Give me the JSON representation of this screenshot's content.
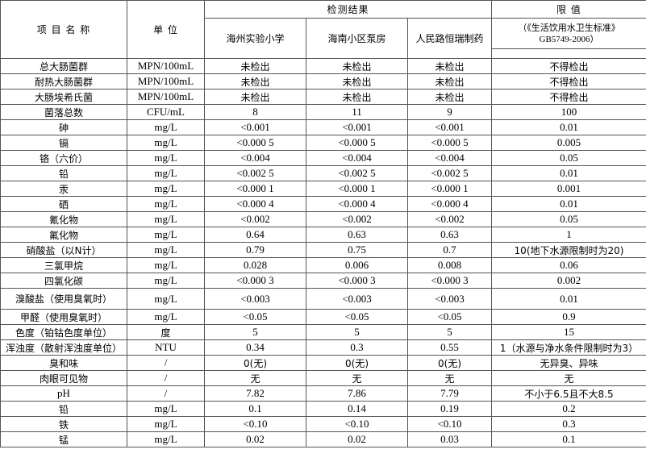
{
  "header": {
    "item": "项 目 名 称",
    "unit": "单 位",
    "results": "检测结果",
    "sites": [
      "海州实验小学",
      "海南小区泵房",
      "人民路恒瑞制药"
    ],
    "limit": "限 值",
    "standard": [
      "（《生活饮用水卫生标准》",
      "GB5749-2006）"
    ]
  },
  "rows": [
    [
      "总大肠菌群",
      "MPN/100mL",
      "未检出",
      "未检出",
      "未检出",
      "不得检出"
    ],
    [
      "耐热大肠菌群",
      "MPN/100mL",
      "未检出",
      "未检出",
      "未检出",
      "不得检出"
    ],
    [
      "大肠埃希氏菌",
      "MPN/100mL",
      "未检出",
      "未检出",
      "未检出",
      "不得检出"
    ],
    [
      "菌落总数",
      "CFU/mL",
      "8",
      "11",
      "9",
      "100"
    ],
    [
      "砷",
      "mg/L",
      "<0.001",
      "<0.001",
      "<0.001",
      "0.01"
    ],
    [
      "镉",
      "mg/L",
      "<0.000 5",
      "<0.000 5",
      "<0.000 5",
      "0.005"
    ],
    [
      "铬（六价）",
      "mg/L",
      "<0.004",
      "<0.004",
      "<0.004",
      "0.05"
    ],
    [
      "铅",
      "mg/L",
      "<0.002 5",
      "<0.002 5",
      "<0.002 5",
      "0.01"
    ],
    [
      "汞",
      "mg/L",
      "<0.000 1",
      "<0.000 1",
      "<0.000 1",
      "0.001"
    ],
    [
      "硒",
      "mg/L",
      "<0.000 4",
      "<0.000 4",
      "<0.000 4",
      "0.01"
    ],
    [
      "氰化物",
      "mg/L",
      "<0.002",
      "<0.002",
      "<0.002",
      "0.05"
    ],
    [
      "氟化物",
      "mg/L",
      "0.64",
      "0.63",
      "0.63",
      "1"
    ],
    [
      "硝酸盐（以N计）",
      "mg/L",
      "0.79",
      "0.75",
      "0.7",
      "10(地下水源限制时为20)"
    ],
    [
      "三氯甲烷",
      "mg/L",
      "0.028",
      "0.006",
      "0.008",
      "0.06"
    ],
    [
      "四氯化碳",
      "mg/L",
      "<0.000 3",
      "<0.000 3",
      "<0.000 3",
      "0.002"
    ],
    [
      "溴酸盐（使用臭氧时）",
      "mg/L",
      "<0.003",
      "<0.003",
      "<0.003",
      "0.01"
    ],
    [
      "甲醛（使用臭氧时）",
      "mg/L",
      "<0.05",
      "<0.05",
      "<0.05",
      "0.9"
    ],
    [
      "色度（铂钴色度单位）",
      "度",
      "5",
      "5",
      "5",
      "15"
    ],
    [
      "浑浊度（散射浑浊度单位）",
      "NTU",
      "0.34",
      "0.3",
      "0.55",
      "1（水源与净水条件限制时为3）"
    ],
    [
      "臭和味",
      "/",
      "0(无)",
      "0(无)",
      "0(无)",
      "无异臭、异味"
    ],
    [
      "肉眼可见物",
      "/",
      "无",
      "无",
      "无",
      "无"
    ],
    [
      "pH",
      "/",
      "7.82",
      "7.86",
      "7.79",
      "不小于6.5且不大8.5"
    ],
    [
      "铅",
      "mg/L",
      "0.1",
      "0.14",
      "0.19",
      "0.2"
    ],
    [
      "铁",
      "mg/L",
      "<0.10",
      "<0.10",
      "<0.10",
      "0.3"
    ],
    [
      "锰",
      "mg/L",
      "0.02",
      "0.02",
      "0.03",
      "0.1"
    ]
  ]
}
